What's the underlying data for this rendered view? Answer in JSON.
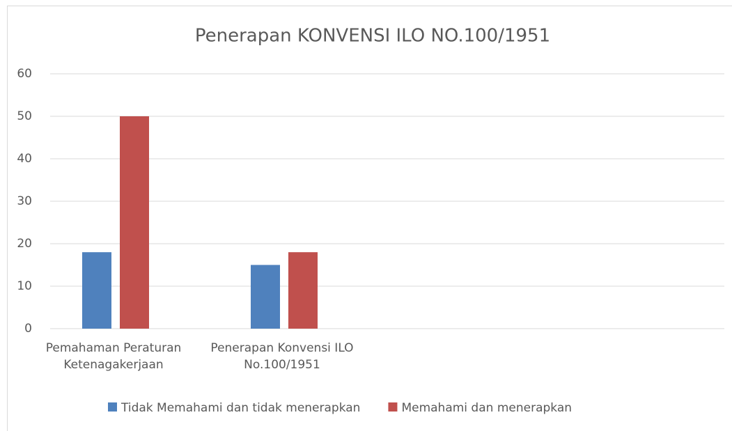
{
  "chart_data": {
    "type": "bar",
    "title": "Penerapan KONVENSI ILO NO.100/1951",
    "categories": [
      "Pemahaman Peraturan Ketenagakerjaan",
      "Penerapan Konvensi ILO No.100/1951",
      null,
      null
    ],
    "series": [
      {
        "name": "Tidak Memahami dan tidak menerapkan",
        "color": "#4f81bd",
        "values": [
          18,
          15,
          null,
          null
        ]
      },
      {
        "name": "Memahami dan menerapkan",
        "color": "#c0504d",
        "values": [
          50,
          18,
          null,
          null
        ]
      }
    ],
    "ylim": [
      0,
      60
    ],
    "yticks": [
      0,
      10,
      20,
      30,
      40,
      50,
      60
    ],
    "grid": true,
    "legend": "bottom"
  }
}
